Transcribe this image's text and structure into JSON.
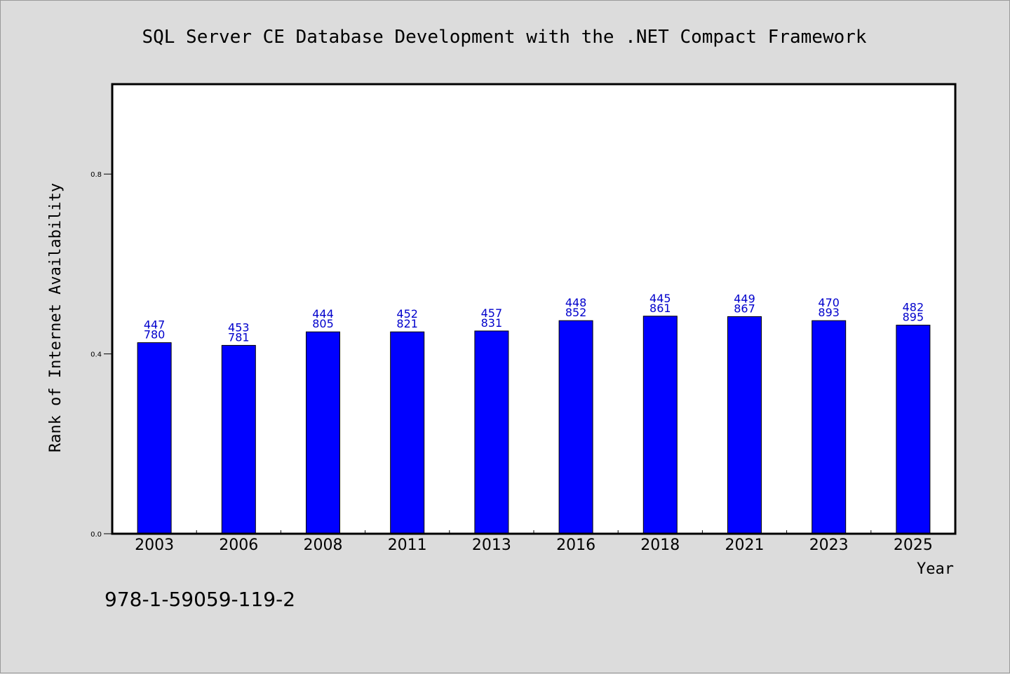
{
  "chart_data": {
    "type": "bar",
    "title": "SQL Server CE Database Development with the .NET Compact Framework",
    "xlabel": "Year",
    "ylabel": "Rank of Internet Availability",
    "categories": [
      "2003",
      "2006",
      "2008",
      "2011",
      "2013",
      "2016",
      "2018",
      "2021",
      "2023",
      "2025"
    ],
    "values": [
      0.425,
      0.419,
      0.449,
      0.449,
      0.451,
      0.474,
      0.484,
      0.483,
      0.474,
      0.464
    ],
    "data_labels": [
      [
        "447",
        "780"
      ],
      [
        "453",
        "781"
      ],
      [
        "444",
        "805"
      ],
      [
        "452",
        "821"
      ],
      [
        "457",
        "831"
      ],
      [
        "448",
        "852"
      ],
      [
        "445",
        "861"
      ],
      [
        "449",
        "867"
      ],
      [
        "470",
        "893"
      ],
      [
        "482",
        "895"
      ]
    ],
    "ylim": [
      0,
      1.0
    ],
    "yticks": [
      {
        "value": 0.0,
        "label": "0.0"
      },
      {
        "value": 0.4,
        "label": "0.4"
      },
      {
        "value": 0.8,
        "label": "0.8"
      }
    ],
    "grid": false,
    "bar_color": "#0000ff",
    "label_color": "#0000cc"
  },
  "footnote": "978-1-59059-119-2"
}
